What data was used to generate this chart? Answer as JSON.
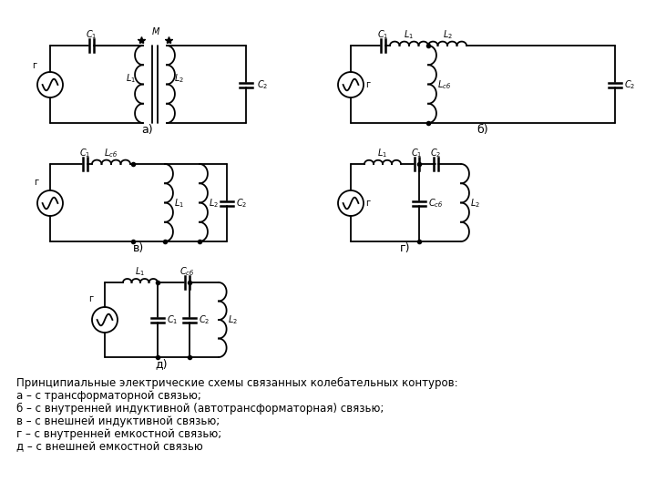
{
  "bg_color": "#ffffff",
  "line_color": "#000000",
  "text_color": "#000000",
  "caption_title": "Принципиальные электрические схемы связанных колебательных контуров:",
  "caption_lines": [
    "а – с трансформаторной связью;",
    "б – с внутренней индуктивной (автотрансформаторная) связью;",
    "в – с внешней индуктивной связью;",
    "г – с внутренней емкостной связью;",
    "д – с внешней емкостной связью"
  ],
  "label_a": "а)",
  "label_b": "б)",
  "label_v": "в)",
  "label_g": "г)",
  "label_d": "д)"
}
